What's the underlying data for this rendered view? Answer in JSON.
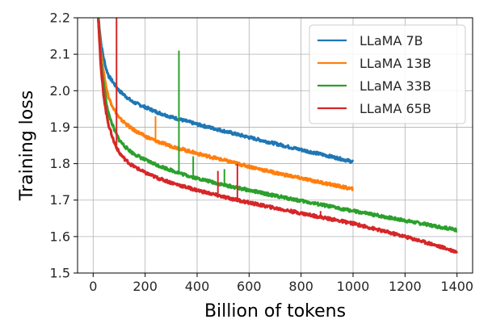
{
  "chart_data": {
    "type": "line",
    "title": "",
    "xlabel": "Billion of tokens",
    "ylabel": "Training loss",
    "xlim": [
      -60,
      1460
    ],
    "ylim": [
      1.5,
      2.2
    ],
    "xticks": [
      0,
      200,
      400,
      600,
      800,
      1000,
      1200,
      1400
    ],
    "yticks": [
      1.5,
      1.6,
      1.7,
      1.8,
      1.9,
      2.0,
      2.1,
      2.2
    ],
    "grid": true,
    "legend_position": "top-right",
    "series": [
      {
        "name": "LLaMA 7B",
        "color": "#1f77b4",
        "x": [
          20,
          30,
          40,
          50,
          60,
          80,
          100,
          125,
          150,
          200,
          250,
          300,
          350,
          400,
          500,
          600,
          700,
          800,
          900,
          1000
        ],
        "y": [
          2.2,
          2.13,
          2.09,
          2.06,
          2.04,
          2.02,
          2.0,
          1.985,
          1.97,
          1.955,
          1.94,
          1.928,
          1.918,
          1.908,
          1.89,
          1.872,
          1.855,
          1.838,
          1.822,
          1.805
        ],
        "spikes": []
      },
      {
        "name": "LLaMA 13B",
        "color": "#ff7f0e",
        "x": [
          20,
          30,
          40,
          50,
          60,
          80,
          100,
          125,
          150,
          200,
          250,
          300,
          350,
          400,
          500,
          600,
          700,
          800,
          900,
          1000
        ],
        "y": [
          2.2,
          2.1,
          2.05,
          2.01,
          1.98,
          1.95,
          1.925,
          1.91,
          1.895,
          1.875,
          1.86,
          1.848,
          1.838,
          1.828,
          1.81,
          1.792,
          1.775,
          1.76,
          1.745,
          1.73
        ],
        "spikes": [
          [
            240,
            1.93
          ]
        ]
      },
      {
        "name": "LLaMA 33B",
        "color": "#2ca02c",
        "x": [
          20,
          30,
          40,
          50,
          60,
          80,
          100,
          125,
          150,
          200,
          250,
          300,
          350,
          400,
          500,
          600,
          700,
          800,
          900,
          1000,
          1100,
          1200,
          1300,
          1400
        ],
        "y": [
          2.2,
          2.08,
          2.02,
          1.97,
          1.935,
          1.895,
          1.865,
          1.845,
          1.83,
          1.81,
          1.795,
          1.782,
          1.77,
          1.76,
          1.742,
          1.727,
          1.712,
          1.698,
          1.684,
          1.67,
          1.657,
          1.644,
          1.631,
          1.618
        ],
        "spikes": [
          [
            330,
            2.11
          ],
          [
            385,
            1.82
          ],
          [
            505,
            1.785
          ]
        ]
      },
      {
        "name": "LLaMA 65B",
        "color": "#d62728",
        "x": [
          20,
          30,
          40,
          50,
          60,
          80,
          100,
          125,
          150,
          200,
          250,
          300,
          350,
          400,
          500,
          600,
          700,
          800,
          900,
          1000,
          1100,
          1200,
          1300,
          1400
        ],
        "y": [
          2.2,
          2.06,
          1.99,
          1.94,
          1.905,
          1.86,
          1.83,
          1.81,
          1.795,
          1.775,
          1.76,
          1.748,
          1.737,
          1.727,
          1.709,
          1.693,
          1.678,
          1.664,
          1.65,
          1.636,
          1.618,
          1.6,
          1.58,
          1.558
        ],
        "spikes": [
          [
            90,
            2.2
          ],
          [
            480,
            1.78
          ],
          [
            555,
            1.8
          ],
          [
            875,
            1.67
          ]
        ]
      }
    ]
  }
}
